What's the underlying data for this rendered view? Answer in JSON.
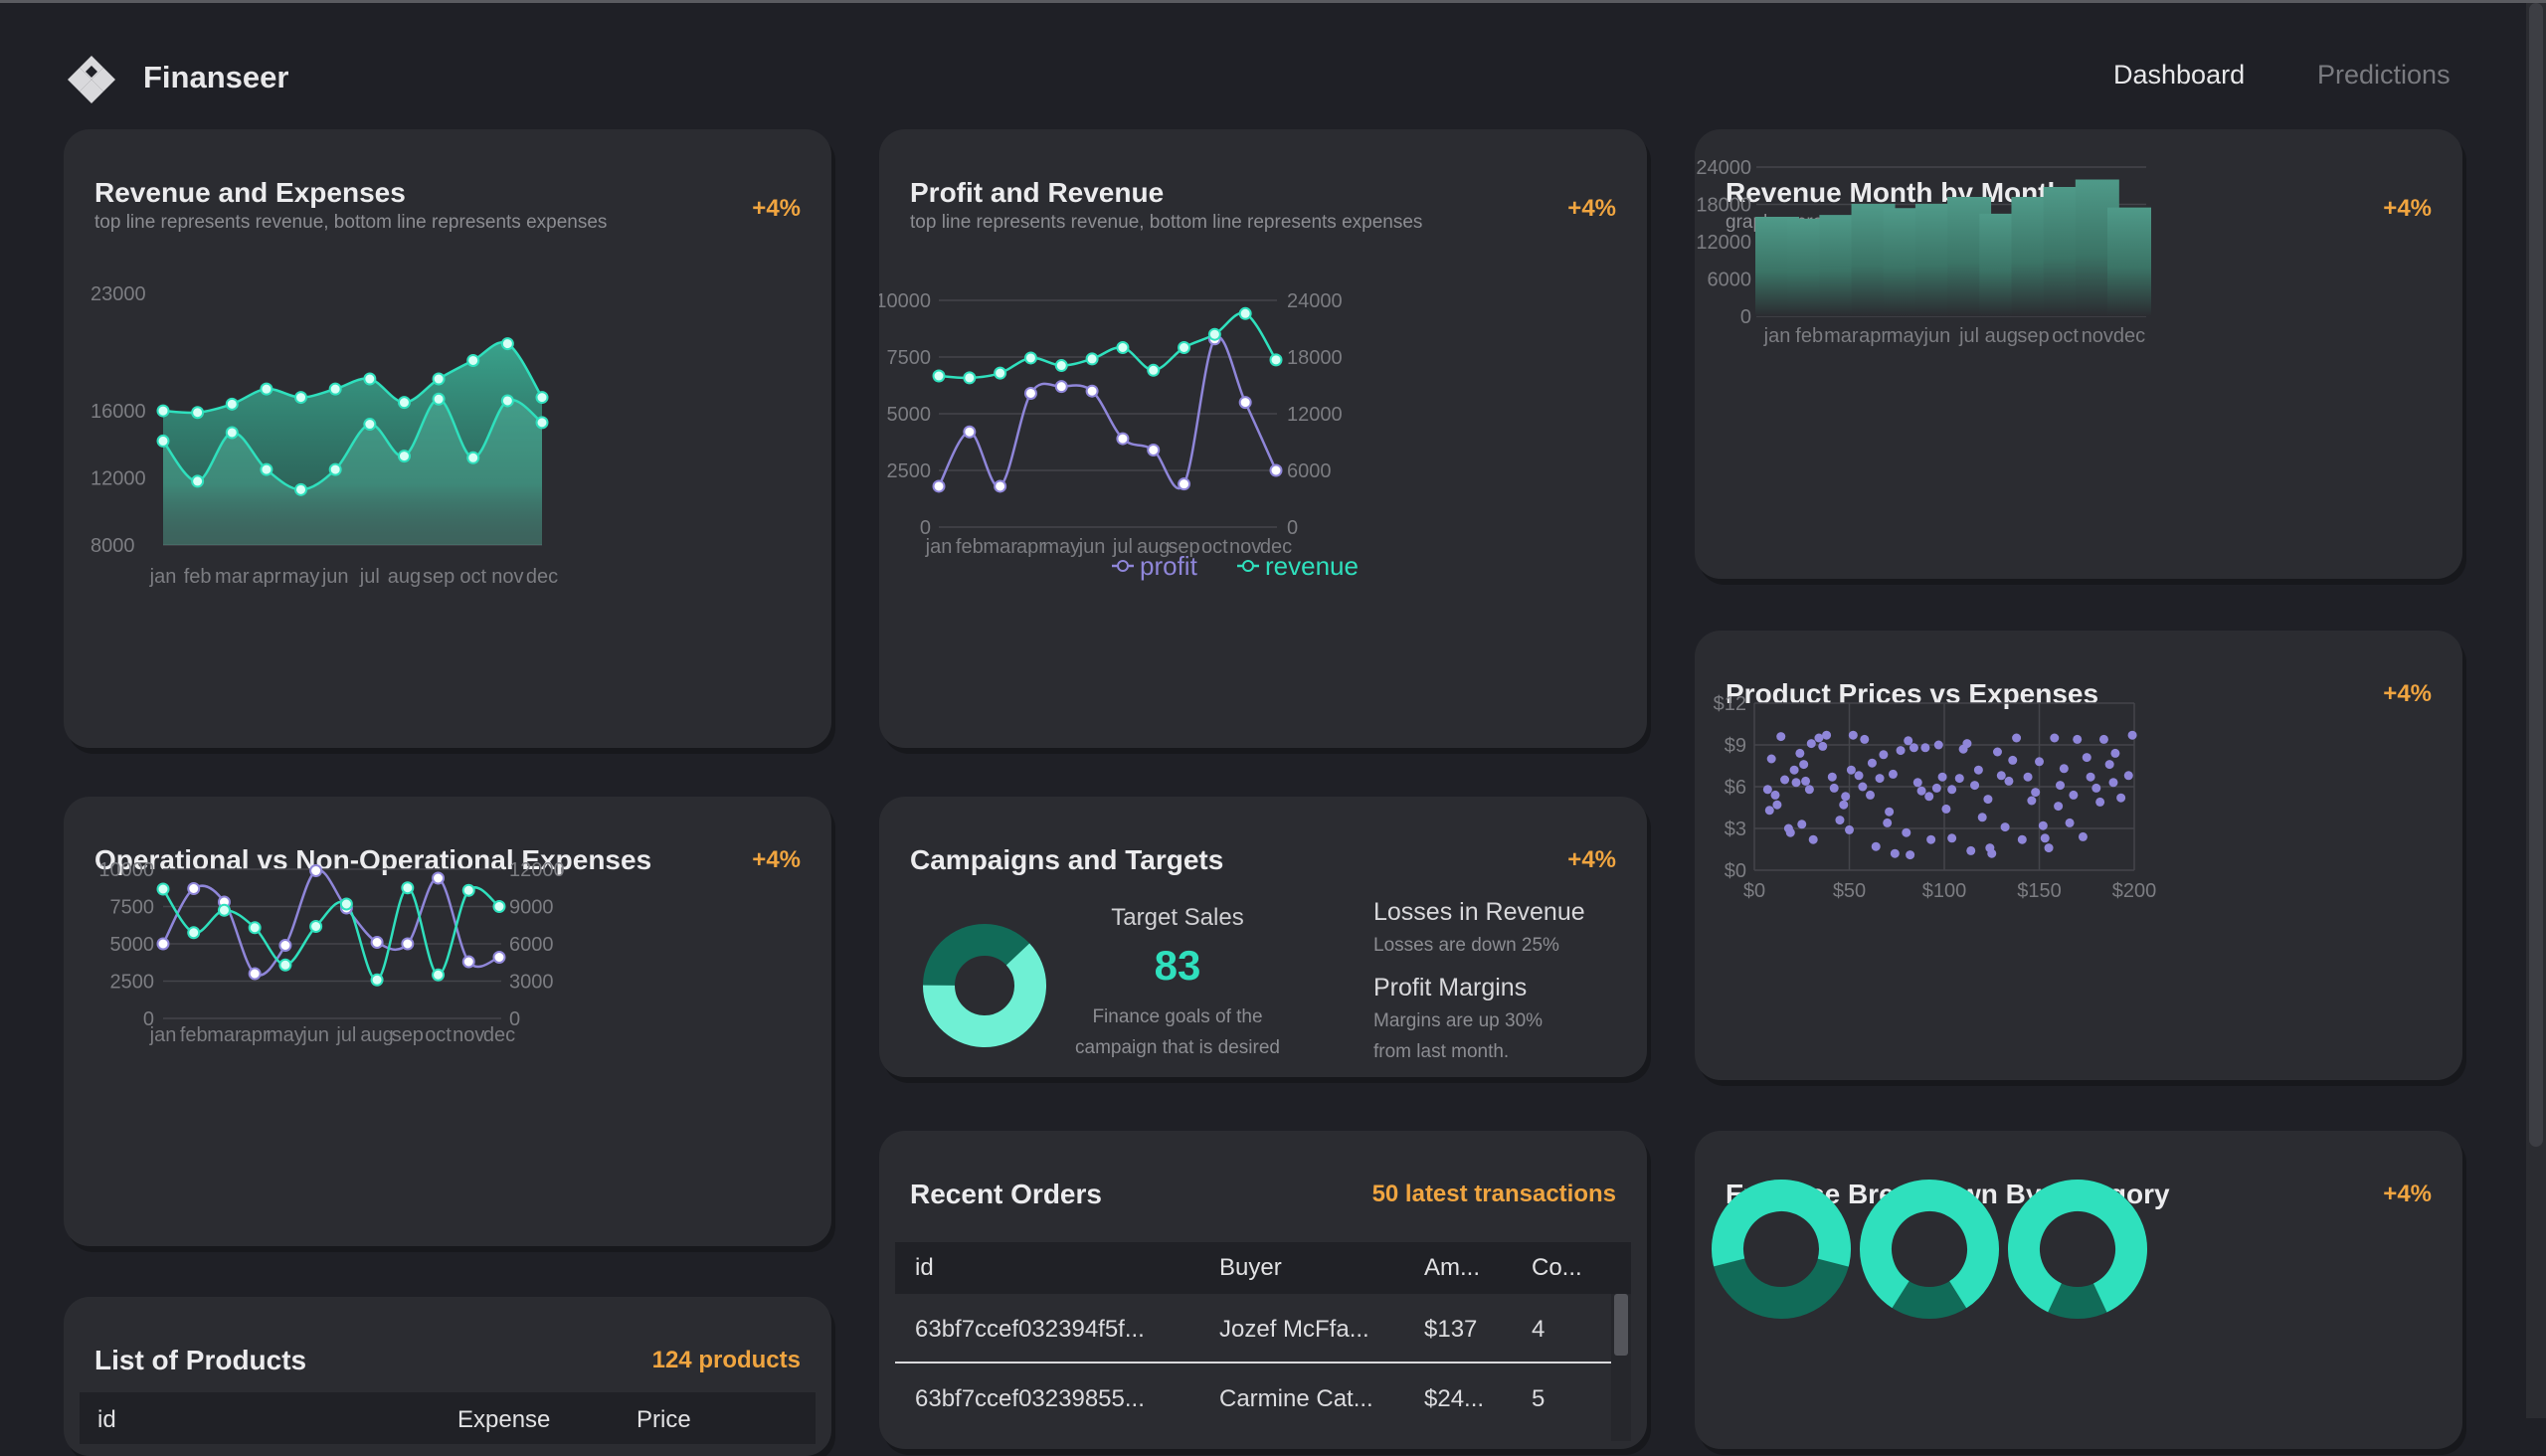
{
  "brand": {
    "name": "Finanseer"
  },
  "nav": {
    "dashboard": "Dashboard",
    "predictions": "Predictions"
  },
  "months": [
    "jan",
    "feb",
    "mar",
    "apr",
    "may",
    "jun",
    "jul",
    "aug",
    "sep",
    "oct",
    "nov",
    "dec"
  ],
  "revenue_expenses": {
    "title": "Revenue and Expenses",
    "subtitle": "top line represents revenue, bottom line represents expenses",
    "badge": "+4%",
    "y_ticks": [
      "23000",
      "16000",
      "12000",
      "8000"
    ]
  },
  "profit_revenue": {
    "title": "Profit and Revenue",
    "subtitle": "top line represents revenue, bottom line represents expenses",
    "badge": "+4%",
    "left_ticks": [
      "10000",
      "7500",
      "5000",
      "2500",
      "0"
    ],
    "right_ticks": [
      "24000",
      "18000",
      "12000",
      "6000",
      "0"
    ],
    "legend": {
      "profit": "profit",
      "revenue": "revenue"
    }
  },
  "revenue_monthly": {
    "title": "Revenue Month by Month",
    "subtitle": "graph representing the revenue month by month",
    "badge": "+4%",
    "y_ticks": [
      "24000",
      "18000",
      "12000",
      "6000",
      "0"
    ]
  },
  "operational": {
    "title": "Operational vs Non-Operational Expenses",
    "badge": "+4%",
    "left_ticks": [
      "10000",
      "7500",
      "5000",
      "2500",
      "0"
    ],
    "right_ticks": [
      "12000",
      "9000",
      "6000",
      "3000",
      "0"
    ]
  },
  "campaigns": {
    "title": "Campaigns and Targets",
    "badge": "+4%",
    "target_label": "Target Sales",
    "target_value": "83",
    "target_note_1": "Finance goals of the",
    "target_note_2": "campaign that is desired",
    "losses_title": "Losses in Revenue",
    "losses_note": "Losses are down 25%",
    "margins_title": "Profit Margins",
    "margins_note_1": "Margins are up 30%",
    "margins_note_2": "from last month.",
    "donut_value": 0.62
  },
  "prices_expenses": {
    "title": "Product Prices vs Expenses",
    "badge": "+4%",
    "y_ticks": [
      "$12",
      "$9",
      "$6",
      "$3",
      "$0"
    ],
    "x_ticks": [
      "$0",
      "$50",
      "$100",
      "$150",
      "$200"
    ]
  },
  "products": {
    "title": "List of Products",
    "badge": "124 products",
    "columns": [
      "id",
      "Expense",
      "Price"
    ]
  },
  "orders": {
    "title": "Recent Orders",
    "badge": "50 latest transactions",
    "columns": [
      "id",
      "Buyer",
      "Am...",
      "Co..."
    ],
    "rows": [
      [
        "63bf7ccef032394f5f...",
        "Jozef McFfa...",
        "$137",
        "4"
      ],
      [
        "63bf7ccef03239855...",
        "Carmine Cat...",
        "$24...",
        "5"
      ]
    ]
  },
  "expense_breakdown": {
    "title": "Expense Breakdown By Category",
    "badge": "+4%",
    "donuts": [
      0.58,
      0.82,
      0.86
    ]
  },
  "chart_data": [
    {
      "type": "area",
      "title": "Revenue and Expenses",
      "categories": [
        "jan",
        "feb",
        "mar",
        "apr",
        "may",
        "jun",
        "jul",
        "aug",
        "sep",
        "oct",
        "nov",
        "dec"
      ],
      "ylim": [
        8000,
        23000
      ],
      "series": [
        {
          "name": "revenue",
          "values": [
            16000,
            15900,
            16400,
            17300,
            16800,
            17300,
            17900,
            16500,
            17900,
            19000,
            20000,
            16800
          ]
        },
        {
          "name": "expenses",
          "values": [
            14200,
            11800,
            14700,
            12500,
            11300,
            12500,
            15200,
            13300,
            16700,
            13200,
            16600,
            15300
          ]
        }
      ]
    },
    {
      "type": "line",
      "title": "Profit and Revenue",
      "categories": [
        "jan",
        "feb",
        "mar",
        "apr",
        "may",
        "jun",
        "jul",
        "aug",
        "sep",
        "oct",
        "nov",
        "dec"
      ],
      "ylim_left": [
        0,
        10000
      ],
      "ylim_right": [
        0,
        24000
      ],
      "series": [
        {
          "name": "profit",
          "axis": "left",
          "values": [
            1800,
            4200,
            1800,
            5900,
            6200,
            6000,
            3900,
            3400,
            1900,
            8300,
            5500,
            2500
          ]
        },
        {
          "name": "revenue",
          "axis": "right",
          "values": [
            16000,
            15800,
            16300,
            17900,
            17100,
            17800,
            19000,
            16600,
            19000,
            20400,
            22600,
            17700
          ]
        }
      ]
    },
    {
      "type": "bar",
      "title": "Revenue Month by Month",
      "categories": [
        "jan",
        "feb",
        "mar",
        "apr",
        "may",
        "jun",
        "jul",
        "aug",
        "sep",
        "oct",
        "nov",
        "dec"
      ],
      "ylim": [
        0,
        24000
      ],
      "values": [
        16000,
        15700,
        16300,
        18100,
        17400,
        18100,
        19200,
        16500,
        19200,
        20800,
        22000,
        17500
      ]
    },
    {
      "type": "line",
      "title": "Operational vs Non-Operational Expenses",
      "categories": [
        "jan",
        "feb",
        "mar",
        "apr",
        "may",
        "jun",
        "jul",
        "aug",
        "sep",
        "oct",
        "nov",
        "dec"
      ],
      "ylim_left": [
        0,
        10000
      ],
      "ylim_right": [
        0,
        12000
      ],
      "series": [
        {
          "name": "non-operational",
          "axis": "left",
          "values": [
            5000,
            8700,
            7800,
            3000,
            4900,
            9900,
            7400,
            5100,
            5000,
            9400,
            3800,
            4100
          ]
        },
        {
          "name": "operational",
          "axis": "right",
          "values": [
            10400,
            6900,
            8700,
            7300,
            4300,
            7400,
            9200,
            3100,
            10500,
            3500,
            10300,
            9000
          ]
        }
      ]
    },
    {
      "type": "scatter",
      "title": "Product Prices vs Expenses",
      "xlim": [
        0,
        200
      ],
      "ylim": [
        0,
        12
      ],
      "x": [
        14,
        11,
        18,
        9,
        22,
        7,
        19,
        26,
        30,
        12,
        25,
        16,
        34,
        29,
        8,
        38,
        21,
        42,
        27,
        45,
        24,
        48,
        36,
        41,
        31,
        47,
        52,
        51,
        55,
        58,
        50,
        61,
        57,
        64,
        68,
        62,
        71,
        66,
        74,
        70,
        77,
        80,
        73,
        84,
        82,
        88,
        81,
        86,
        93,
        90,
        96,
        92,
        99,
        97,
        104,
        101,
        108,
        110,
        104,
        114,
        112,
        118,
        116,
        120,
        125,
        123,
        128,
        130,
        124,
        134,
        132,
        138,
        136,
        141,
        146,
        144,
        150,
        148,
        152,
        155,
        158,
        153,
        160,
        163,
        161,
        166,
        170,
        168,
        173,
        177,
        175,
        180,
        184,
        182,
        187,
        190,
        189,
        193,
        197,
        199
      ],
      "y": [
        9.6,
        5.4,
        3.0,
        8.0,
        6.3,
        5.8,
        2.7,
        7.6,
        9.1,
        4.7,
        3.3,
        6.5,
        9.5,
        5.8,
        4.3,
        9.7,
        7.2,
        5.9,
        6.4,
        3.6,
        8.4,
        5.3,
        8.9,
        6.7,
        2.2,
        4.7,
        9.7,
        7.2,
        6.8,
        9.4,
        2.9,
        5.4,
        6.0,
        1.7,
        8.3,
        7.7,
        4.2,
        6.6,
        1.2,
        3.4,
        8.6,
        2.7,
        6.9,
        8.8,
        1.1,
        5.7,
        9.3,
        6.3,
        2.2,
        8.8,
        5.9,
        5.3,
        6.7,
        9.0,
        2.3,
        4.4,
        6.6,
        8.7,
        5.8,
        1.4,
        9.1,
        7.2,
        6.1,
        3.8,
        1.2,
        5.1,
        8.5,
        6.8,
        1.6,
        6.4,
        3.1,
        9.5,
        7.9,
        2.2,
        5.0,
        6.7,
        7.8,
        5.6,
        3.2,
        1.6,
        9.5,
        2.3,
        4.6,
        7.3,
        6.1,
        3.4,
        9.4,
        5.4,
        2.4,
        6.7,
        8.1,
        5.9,
        9.4,
        4.9,
        7.6,
        8.4,
        6.3,
        5.2,
        6.8,
        9.7
      ]
    },
    {
      "type": "pie",
      "title": "Campaigns and Targets",
      "values": [
        62,
        38
      ]
    },
    {
      "type": "pie",
      "title": "Expense Breakdown By Category",
      "values": [
        58,
        82,
        86
      ]
    }
  ],
  "colors": {
    "accent": "#2fe0bd",
    "accent_dark": "#116b58",
    "profit": "#8f86d9",
    "badge": "#f0a540"
  }
}
